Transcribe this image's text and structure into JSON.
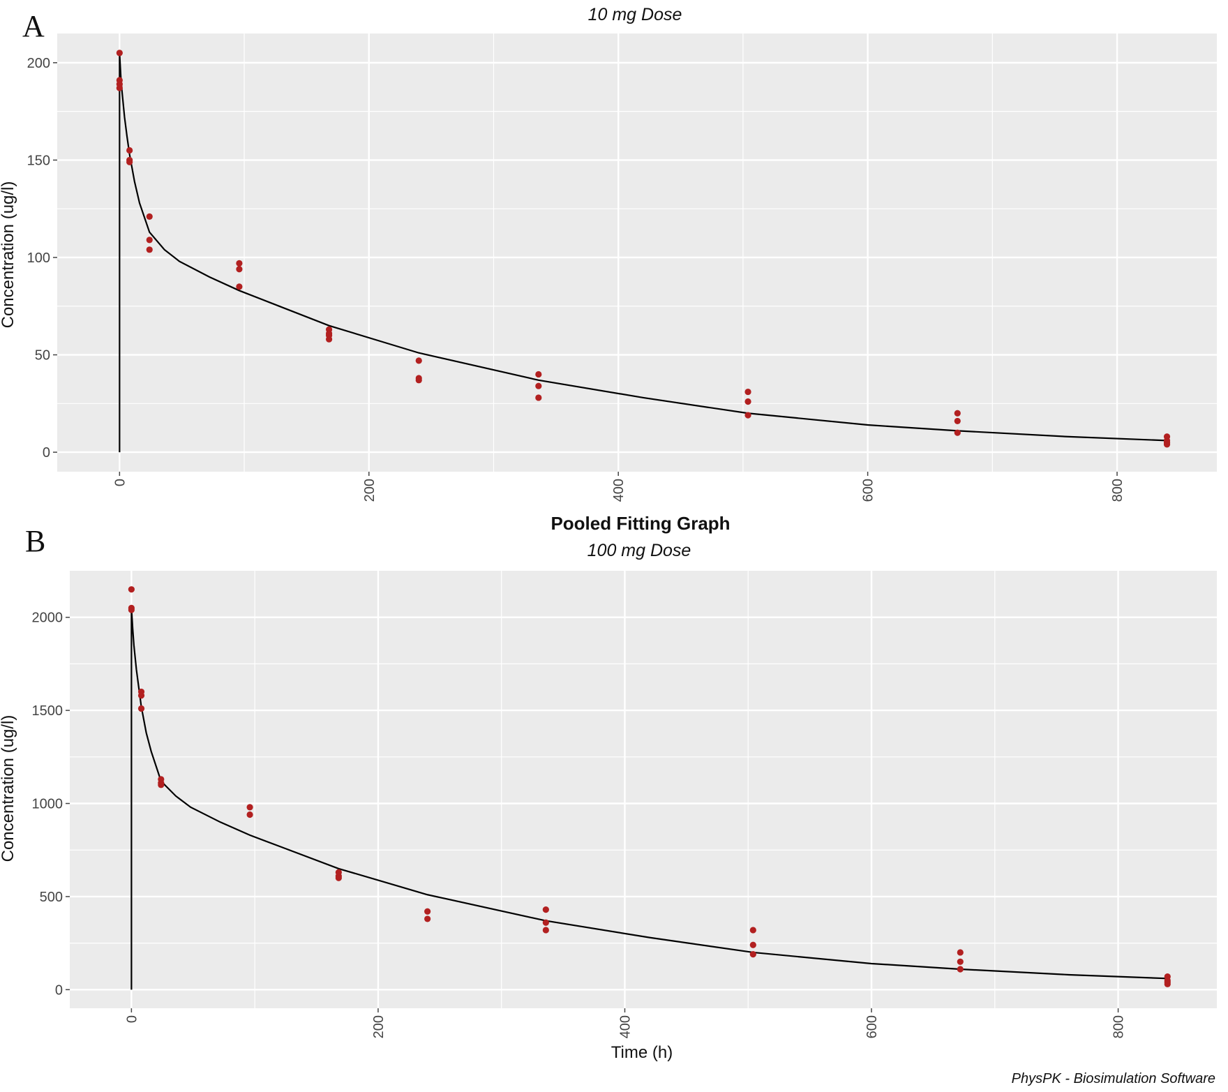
{
  "chart_data": [
    {
      "type": "scatter",
      "panel_label": "A",
      "title": "",
      "subtitle": "10 mg Dose",
      "xlabel": "",
      "ylabel": "Concentration (ug/l)",
      "xlim": [
        -50,
        880
      ],
      "ylim": [
        -10,
        215
      ],
      "x_ticks": [
        0,
        200,
        400,
        600,
        800
      ],
      "y_ticks": [
        0,
        50,
        100,
        150,
        200
      ],
      "grid": true,
      "observations": {
        "x": [
          0,
          0,
          0,
          0,
          8,
          8,
          8,
          24,
          24,
          24,
          96,
          96,
          96,
          168,
          168,
          168,
          168,
          240,
          240,
          240,
          336,
          336,
          336,
          504,
          504,
          504,
          672,
          672,
          672,
          840,
          840,
          840,
          840
        ],
        "y": [
          205,
          191,
          189,
          187,
          155,
          150,
          149,
          121,
          109,
          104,
          97,
          94,
          85,
          63,
          61,
          60,
          58,
          47,
          38,
          37,
          40,
          34,
          28,
          31,
          26,
          19,
          20,
          16,
          10,
          8,
          6,
          5,
          4
        ]
      },
      "fit": {
        "x": [
          0,
          1,
          2,
          4,
          6,
          8,
          12,
          16,
          24,
          36,
          48,
          72,
          96,
          120,
          168,
          240,
          336,
          420,
          504,
          600,
          672,
          760,
          840
        ],
        "y": [
          205,
          193,
          185,
          172,
          162,
          153,
          139,
          128,
          113,
          104,
          98,
          90,
          83,
          77,
          65,
          51,
          37,
          28,
          20,
          14,
          11,
          8,
          6
        ]
      },
      "colors": {
        "points": "#b22020",
        "fit_line": "#000000",
        "panel_bg": "#ebebeb",
        "grid": "#ffffff"
      }
    },
    {
      "type": "scatter",
      "panel_label": "B",
      "title": "Pooled Fitting Graph",
      "subtitle": "100 mg Dose",
      "xlabel": "Time (h)",
      "ylabel": "Concentration (ug/l)",
      "xlim": [
        -50,
        880
      ],
      "ylim": [
        -100,
        2250
      ],
      "x_ticks": [
        0,
        200,
        400,
        600,
        800
      ],
      "y_ticks": [
        0,
        500,
        1000,
        1500,
        2000
      ],
      "grid": true,
      "observations": {
        "x": [
          0,
          0,
          0,
          8,
          8,
          8,
          24,
          24,
          24,
          96,
          96,
          168,
          168,
          168,
          240,
          240,
          336,
          336,
          336,
          504,
          504,
          504,
          672,
          672,
          672,
          840,
          840,
          840,
          840
        ],
        "y": [
          2150,
          2050,
          2040,
          1600,
          1580,
          1510,
          1130,
          1110,
          1100,
          980,
          940,
          630,
          610,
          600,
          420,
          380,
          430,
          360,
          320,
          320,
          240,
          190,
          200,
          150,
          110,
          70,
          50,
          40,
          30
        ]
      },
      "fit": {
        "x": [
          0,
          1,
          2,
          4,
          6,
          8,
          12,
          16,
          24,
          36,
          48,
          72,
          96,
          120,
          168,
          240,
          336,
          420,
          504,
          600,
          672,
          760,
          840
        ],
        "y": [
          2050,
          1940,
          1850,
          1720,
          1620,
          1520,
          1380,
          1280,
          1120,
          1040,
          980,
          900,
          830,
          770,
          650,
          510,
          370,
          280,
          200,
          140,
          110,
          80,
          60
        ]
      },
      "colors": {
        "points": "#b22020",
        "fit_line": "#000000",
        "panel_bg": "#ebebeb",
        "grid": "#ffffff"
      }
    }
  ],
  "caption": "PhysPK - Biosimulation Software"
}
